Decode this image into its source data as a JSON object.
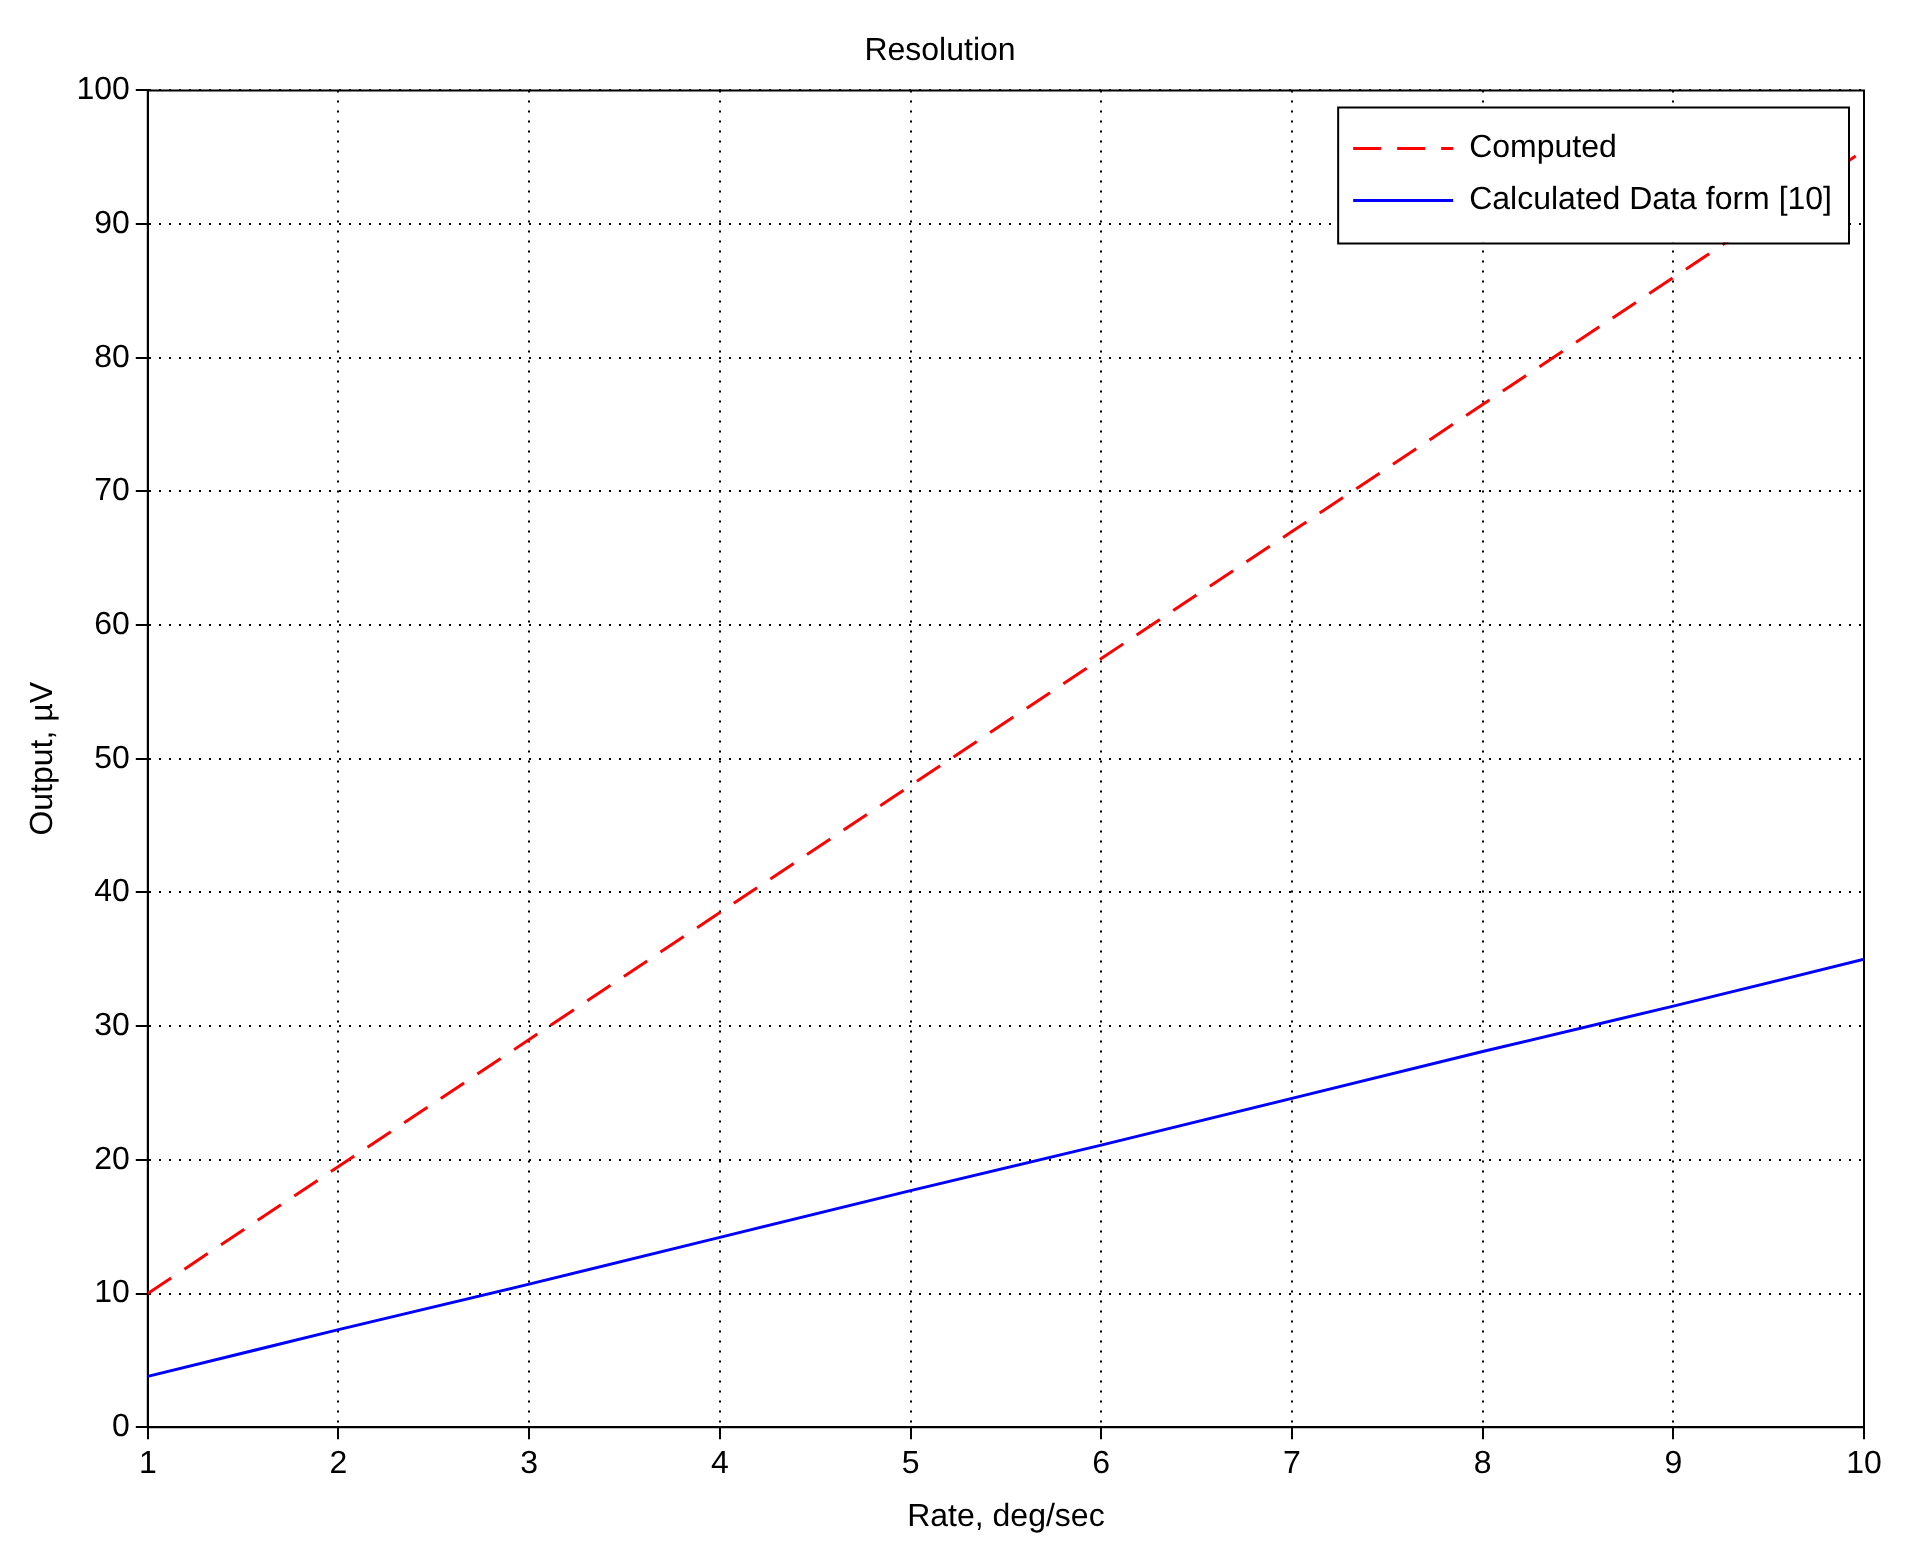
{
  "chart_data": {
    "type": "line",
    "title": "Resolution",
    "xlabel": "Rate, deg/sec",
    "ylabel": "Output, µV",
    "x": [
      1,
      2,
      3,
      4,
      5,
      6,
      7,
      8,
      9,
      10
    ],
    "series": [
      {
        "name": "Computed",
        "color": "#ff0000",
        "line_style": "dashed",
        "values": [
          10,
          19.5,
          29,
          38.5,
          48,
          57.5,
          67,
          76.5,
          86,
          95.5
        ]
      },
      {
        "name": "Calculated Data form [10]",
        "color": "#0000ff",
        "line_style": "solid",
        "values": [
          3.8,
          7.3,
          10.7,
          14.2,
          17.7,
          21.1,
          24.6,
          28.1,
          31.5,
          35
        ]
      }
    ],
    "xlim": [
      1,
      10
    ],
    "xticks": [
      1,
      2,
      3,
      4,
      5,
      6,
      7,
      8,
      9,
      10
    ],
    "ylim": [
      0,
      100
    ],
    "yticks": [
      0,
      10,
      20,
      30,
      40,
      50,
      60,
      70,
      80,
      90,
      100
    ],
    "grid": true,
    "legend": "top right",
    "marker": "none"
  }
}
